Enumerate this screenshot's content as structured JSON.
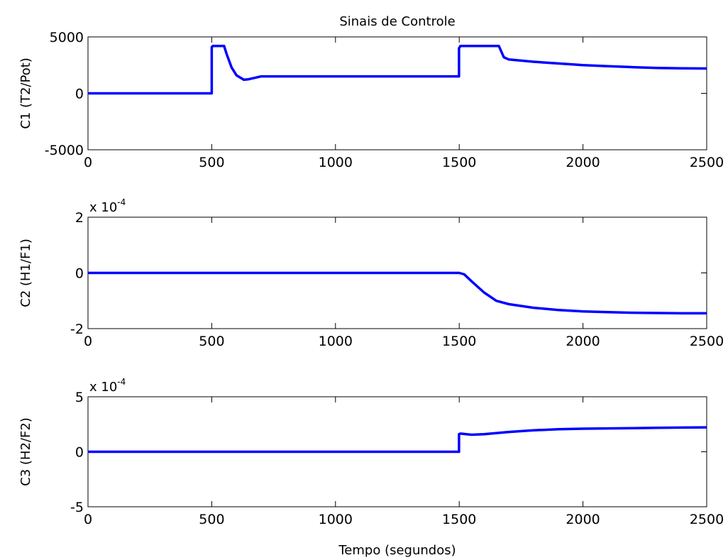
{
  "title": "Sinais de Controle",
  "xlabel": "Tempo (segundos)",
  "chart_data": [
    {
      "type": "line",
      "title": "Sinais de Controle",
      "xlabel": "",
      "ylabel": "C1 (T2/Pot)",
      "xlim": [
        0,
        2500
      ],
      "ylim": [
        -5000,
        5000
      ],
      "xticks": [
        0,
        500,
        1000,
        1500,
        2000,
        2500
      ],
      "yticks": [
        -5000,
        0,
        5000
      ],
      "xtick_labels": [
        "0",
        "500",
        "1000",
        "1500",
        "2000",
        "2500"
      ],
      "ytick_labels": [
        "-5000",
        "0",
        "5000"
      ],
      "exponent_label": "",
      "grid": false,
      "color": "#0000ff",
      "series": [
        {
          "x": [
            0,
            500,
            500,
            505,
            550,
            560,
            580,
            600,
            630,
            650,
            700,
            1000,
            1499,
            1499,
            1505,
            1660,
            1680,
            1700,
            1800,
            1900,
            2000,
            2100,
            2200,
            2300,
            2400,
            2500
          ],
          "y": [
            0,
            0,
            4100,
            4200,
            4200,
            3500,
            2300,
            1600,
            1200,
            1250,
            1500,
            1500,
            1500,
            4000,
            4200,
            4200,
            3200,
            3000,
            2800,
            2650,
            2500,
            2400,
            2320,
            2250,
            2220,
            2200
          ]
        }
      ]
    },
    {
      "type": "line",
      "xlabel": "",
      "ylabel": "C2 (H1/F1)",
      "xlim": [
        0,
        2500
      ],
      "ylim": [
        -0.0002,
        0.0002
      ],
      "xticks": [
        0,
        500,
        1000,
        1500,
        2000,
        2500
      ],
      "yticks": [
        -0.0002,
        0,
        0.0002
      ],
      "xtick_labels": [
        "0",
        "500",
        "1000",
        "1500",
        "2000",
        "2500"
      ],
      "ytick_labels": [
        "-2",
        "0",
        "2"
      ],
      "exponent_label": "x 10",
      "exponent_power": "-4",
      "grid": false,
      "color": "#0000ff",
      "series": [
        {
          "x": [
            0,
            1500,
            1520,
            1550,
            1600,
            1650,
            1700,
            1800,
            1900,
            2000,
            2100,
            2200,
            2300,
            2400,
            2500
          ],
          "y": [
            0,
            0,
            -5e-06,
            -3e-05,
            -7e-05,
            -0.0001,
            -0.000112,
            -0.000125,
            -0.000133,
            -0.000138,
            -0.000141,
            -0.000143,
            -0.000144,
            -0.000145,
            -0.000145
          ]
        }
      ]
    },
    {
      "type": "line",
      "xlabel": "Tempo (segundos)",
      "ylabel": "C3 (H2/F2)",
      "xlim": [
        0,
        2500
      ],
      "ylim": [
        -0.0005,
        0.0005
      ],
      "xticks": [
        0,
        500,
        1000,
        1500,
        2000,
        2500
      ],
      "yticks": [
        -0.0005,
        0,
        0.0005
      ],
      "xtick_labels": [
        "0",
        "500",
        "1000",
        "1500",
        "2000",
        "2500"
      ],
      "ytick_labels": [
        "-5",
        "0",
        "5"
      ],
      "exponent_label": "x 10",
      "exponent_power": "-4",
      "grid": false,
      "color": "#0000ff",
      "series": [
        {
          "x": [
            0,
            1499,
            1499,
            1505,
            1550,
            1600,
            1700,
            1800,
            1900,
            2000,
            2100,
            2200,
            2300,
            2400,
            2500
          ],
          "y": [
            0,
            0,
            0.00016,
            0.000165,
            0.000155,
            0.00016,
            0.00018,
            0.000195,
            0.000205,
            0.00021,
            0.000212,
            0.000215,
            0.000218,
            0.00022,
            0.000222
          ]
        }
      ]
    }
  ]
}
